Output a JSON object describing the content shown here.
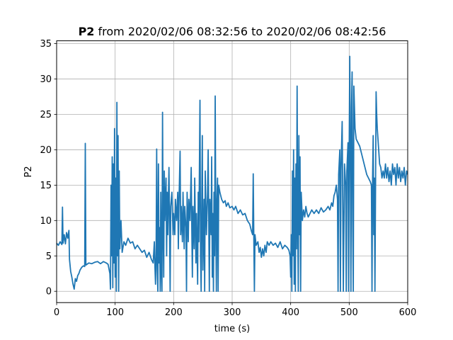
{
  "chart_data": {
    "type": "line",
    "title_bold": "P2",
    "title_rest": " from 2020/02/06 08:32:56 to 2020/02/06 08:42:56",
    "xlabel": "time (s)",
    "ylabel": "P2",
    "xlim": [
      0,
      600
    ],
    "ylim": [
      -1.6,
      35.4
    ],
    "xticks": [
      0,
      100,
      200,
      300,
      400,
      500,
      600
    ],
    "yticks": [
      0,
      5,
      10,
      15,
      20,
      25,
      30,
      35
    ],
    "grid": true,
    "legend": "none",
    "series": [
      {
        "color": "#1f77b4",
        "points": [
          [
            0,
            6.8
          ],
          [
            3,
            6.5
          ],
          [
            6,
            7.0
          ],
          [
            9,
            6.6
          ],
          [
            10,
            11.9
          ],
          [
            11,
            6.8
          ],
          [
            13,
            8.0
          ],
          [
            15,
            6.7
          ],
          [
            17,
            8.3
          ],
          [
            19,
            7.5
          ],
          [
            21,
            8.6
          ],
          [
            22,
            4.5
          ],
          [
            24,
            2.8
          ],
          [
            26,
            2.0
          ],
          [
            28,
            1.0
          ],
          [
            30,
            0.3
          ],
          [
            32,
            1.8
          ],
          [
            34,
            1.4
          ],
          [
            36,
            2.2
          ],
          [
            38,
            2.5
          ],
          [
            40,
            3.0
          ],
          [
            43,
            3.4
          ],
          [
            46,
            3.6
          ],
          [
            48,
            3.5
          ],
          [
            49,
            20.9
          ],
          [
            50,
            3.7
          ],
          [
            55,
            4.0
          ],
          [
            60,
            3.9
          ],
          [
            65,
            4.1
          ],
          [
            70,
            4.2
          ],
          [
            75,
            3.9
          ],
          [
            80,
            4.2
          ],
          [
            85,
            4.0
          ],
          [
            88,
            3.8
          ],
          [
            91,
            2.5
          ],
          [
            92,
            0.3
          ],
          [
            93,
            15.0
          ],
          [
            94,
            5.0
          ],
          [
            95,
            19.0
          ],
          [
            96,
            0.5
          ],
          [
            97,
            18.0
          ],
          [
            98,
            4.0
          ],
          [
            99,
            23.0
          ],
          [
            100,
            2.0
          ],
          [
            101,
            16.0
          ],
          [
            102,
            0.0
          ],
          [
            103,
            26.7
          ],
          [
            104,
            5.0
          ],
          [
            105,
            22.0
          ],
          [
            106,
            0.0
          ],
          [
            107,
            17.0
          ],
          [
            108,
            6.0
          ],
          [
            110,
            10.0
          ],
          [
            112,
            5.5
          ],
          [
            115,
            7.0
          ],
          [
            118,
            6.5
          ],
          [
            122,
            7.5
          ],
          [
            126,
            6.8
          ],
          [
            130,
            7.0
          ],
          [
            134,
            6.0
          ],
          [
            138,
            6.5
          ],
          [
            142,
            6.0
          ],
          [
            146,
            5.5
          ],
          [
            150,
            5.8
          ],
          [
            154,
            4.8
          ],
          [
            158,
            5.5
          ],
          [
            162,
            4.5
          ],
          [
            165,
            4.0
          ],
          [
            167,
            7.0
          ],
          [
            168,
            3.5
          ],
          [
            169,
            1.0
          ],
          [
            170,
            5.0
          ],
          [
            171,
            20.1
          ],
          [
            172,
            3.0
          ],
          [
            173,
            0.0
          ],
          [
            174,
            18.0
          ],
          [
            175,
            4.0
          ],
          [
            176,
            9.0
          ],
          [
            177,
            0.0
          ],
          [
            178,
            14.0
          ],
          [
            179,
            3.0
          ],
          [
            180,
            0.0
          ],
          [
            181,
            25.3
          ],
          [
            182,
            9.0
          ],
          [
            183,
            2.0
          ],
          [
            184,
            17.0
          ],
          [
            185,
            10.0
          ],
          [
            187,
            16.0
          ],
          [
            188,
            5.0
          ],
          [
            189,
            14.0
          ],
          [
            190,
            8.0
          ],
          [
            192,
            17.5
          ],
          [
            193,
            9.0
          ],
          [
            194,
            0.0
          ],
          [
            195,
            12.0
          ],
          [
            197,
            14.0
          ],
          [
            199,
            8.0
          ],
          [
            200,
            11.0
          ],
          [
            202,
            8.0
          ],
          [
            203,
            13.0
          ],
          [
            205,
            10.0
          ],
          [
            207,
            14.0
          ],
          [
            208,
            6.0
          ],
          [
            209,
            12.0
          ],
          [
            211,
            19.8
          ],
          [
            212,
            8.0
          ],
          [
            213,
            12.0
          ],
          [
            215,
            7.0
          ],
          [
            216,
            14.0
          ],
          [
            218,
            6.0
          ],
          [
            219,
            12.0
          ],
          [
            221,
            9.0
          ],
          [
            222,
            0.0
          ],
          [
            223,
            14.0
          ],
          [
            225,
            7.0
          ],
          [
            226,
            13.0
          ],
          [
            228,
            10.0
          ],
          [
            230,
            17.5
          ],
          [
            231,
            9.0
          ],
          [
            232,
            2.0
          ],
          [
            233,
            12.0
          ],
          [
            235,
            6.0
          ],
          [
            236,
            16.0
          ],
          [
            238,
            4.0
          ],
          [
            239,
            11.0
          ],
          [
            241,
            1.0
          ],
          [
            242,
            14.0
          ],
          [
            243,
            7.0
          ],
          [
            245,
            27.0
          ],
          [
            246,
            5.0
          ],
          [
            247,
            0.0
          ],
          [
            248,
            12.0
          ],
          [
            249,
            22.0
          ],
          [
            250,
            3.0
          ],
          [
            252,
            13.0
          ],
          [
            253,
            0.0
          ],
          [
            254,
            17.0
          ],
          [
            256,
            8.0
          ],
          [
            258,
            14.0
          ],
          [
            259,
            20.0
          ],
          [
            260,
            10.0
          ],
          [
            261,
            0.0
          ],
          [
            262,
            13.0
          ],
          [
            264,
            8.0
          ],
          [
            265,
            19.0
          ],
          [
            266,
            2.0
          ],
          [
            267,
            11.0
          ],
          [
            268,
            0.0
          ],
          [
            269,
            14.0
          ],
          [
            270,
            5.0
          ],
          [
            271,
            27.6
          ],
          [
            272,
            10.0
          ],
          [
            273,
            0.0
          ],
          [
            274,
            13.0
          ],
          [
            275,
            16.0
          ],
          [
            276,
            0.0
          ],
          [
            277,
            15.0
          ],
          [
            279,
            14.0
          ],
          [
            282,
            13.0
          ],
          [
            285,
            12.5
          ],
          [
            288,
            12.8
          ],
          [
            290,
            12.0
          ],
          [
            293,
            12.5
          ],
          [
            296,
            11.8
          ],
          [
            300,
            12.0
          ],
          [
            303,
            11.5
          ],
          [
            306,
            12.0
          ],
          [
            310,
            11.0
          ],
          [
            314,
            11.5
          ],
          [
            318,
            10.8
          ],
          [
            322,
            11.0
          ],
          [
            326,
            10.0
          ],
          [
            330,
            9.5
          ],
          [
            333,
            8.5
          ],
          [
            335,
            8.0
          ],
          [
            336,
            16.6
          ],
          [
            337,
            7.5
          ],
          [
            338,
            0.0
          ],
          [
            339,
            8.0
          ],
          [
            341,
            6.5
          ],
          [
            344,
            7.0
          ],
          [
            346,
            5.5
          ],
          [
            348,
            6.2
          ],
          [
            350,
            4.8
          ],
          [
            352,
            6.0
          ],
          [
            354,
            5.0
          ],
          [
            356,
            6.5
          ],
          [
            358,
            5.5
          ],
          [
            360,
            7.0
          ],
          [
            363,
            6.5
          ],
          [
            366,
            7.0
          ],
          [
            370,
            6.5
          ],
          [
            374,
            6.8
          ],
          [
            378,
            6.2
          ],
          [
            382,
            7.0
          ],
          [
            386,
            6.0
          ],
          [
            390,
            6.5
          ],
          [
            394,
            6.2
          ],
          [
            397,
            5.8
          ],
          [
            399,
            5.0
          ],
          [
            400,
            2.0
          ],
          [
            401,
            8.0
          ],
          [
            402,
            0.0
          ],
          [
            403,
            17.0
          ],
          [
            404,
            5.0
          ],
          [
            405,
            20.0
          ],
          [
            406,
            1.0
          ],
          [
            407,
            16.0
          ],
          [
            408,
            0.0
          ],
          [
            409,
            18.0
          ],
          [
            410,
            6.0
          ],
          [
            411,
            29.0
          ],
          [
            412,
            10.0
          ],
          [
            413,
            0.0
          ],
          [
            414,
            22.0
          ],
          [
            415,
            8.0
          ],
          [
            416,
            19.0
          ],
          [
            417,
            0.0
          ],
          [
            418,
            14.0
          ],
          [
            420,
            10.0
          ],
          [
            422,
            11.5
          ],
          [
            424,
            10.5
          ],
          [
            426,
            12.0
          ],
          [
            428,
            11.0
          ],
          [
            430,
            10.5
          ],
          [
            433,
            11.0
          ],
          [
            436,
            11.5
          ],
          [
            440,
            11.0
          ],
          [
            444,
            11.5
          ],
          [
            448,
            11.0
          ],
          [
            452,
            11.8
          ],
          [
            456,
            11.2
          ],
          [
            460,
            11.5
          ],
          [
            464,
            12.0
          ],
          [
            467,
            11.5
          ],
          [
            470,
            12.5
          ],
          [
            472,
            12.0
          ],
          [
            474,
            13.5
          ],
          [
            476,
            14.0
          ],
          [
            478,
            15.0
          ],
          [
            480,
            13.0
          ],
          [
            481,
            0.0
          ],
          [
            482,
            16.5
          ],
          [
            484,
            20.0
          ],
          [
            485,
            0.0
          ],
          [
            486,
            17.0
          ],
          [
            488,
            24.0
          ],
          [
            489,
            12.0
          ],
          [
            490,
            0.0
          ],
          [
            492,
            18.0
          ],
          [
            494,
            15.0
          ],
          [
            495,
            0.0
          ],
          [
            496,
            17.0
          ],
          [
            498,
            21.0
          ],
          [
            499,
            0.0
          ],
          [
            500,
            20.0
          ],
          [
            501,
            33.2
          ],
          [
            502,
            18.0
          ],
          [
            503,
            0.0
          ],
          [
            504,
            26.0
          ],
          [
            505,
            31.0
          ],
          [
            506,
            10.0
          ],
          [
            507,
            0.0
          ],
          [
            508,
            29.0
          ],
          [
            510,
            23.0
          ],
          [
            512,
            21.5
          ],
          [
            515,
            21.0
          ],
          [
            518,
            20.5
          ],
          [
            521,
            19.5
          ],
          [
            524,
            18.5
          ],
          [
            527,
            17.5
          ],
          [
            530,
            16.5
          ],
          [
            533,
            16.0
          ],
          [
            536,
            15.5
          ],
          [
            538,
            15.0
          ],
          [
            539,
            0.0
          ],
          [
            540,
            16.0
          ],
          [
            541,
            22.0
          ],
          [
            542,
            8.0
          ],
          [
            543,
            16.0
          ],
          [
            544,
            0.0
          ],
          [
            546,
            28.2
          ],
          [
            547,
            25.0
          ],
          [
            548,
            23.0
          ],
          [
            550,
            20.5
          ],
          [
            552,
            18.0
          ],
          [
            554,
            17.5
          ],
          [
            556,
            16.0
          ],
          [
            558,
            17.0
          ],
          [
            560,
            16.0
          ],
          [
            562,
            18.0
          ],
          [
            564,
            16.0
          ],
          [
            566,
            17.5
          ],
          [
            568,
            15.5
          ],
          [
            570,
            17.0
          ],
          [
            572,
            15.0
          ],
          [
            574,
            18.0
          ],
          [
            576,
            16.5
          ],
          [
            578,
            17.5
          ],
          [
            580,
            15.0
          ],
          [
            582,
            18.0
          ],
          [
            584,
            16.0
          ],
          [
            586,
            17.5
          ],
          [
            588,
            15.5
          ],
          [
            590,
            17.0
          ],
          [
            592,
            16.0
          ],
          [
            594,
            17.5
          ],
          [
            596,
            15.0
          ],
          [
            598,
            17.0
          ],
          [
            600,
            16.5
          ]
        ]
      }
    ]
  }
}
